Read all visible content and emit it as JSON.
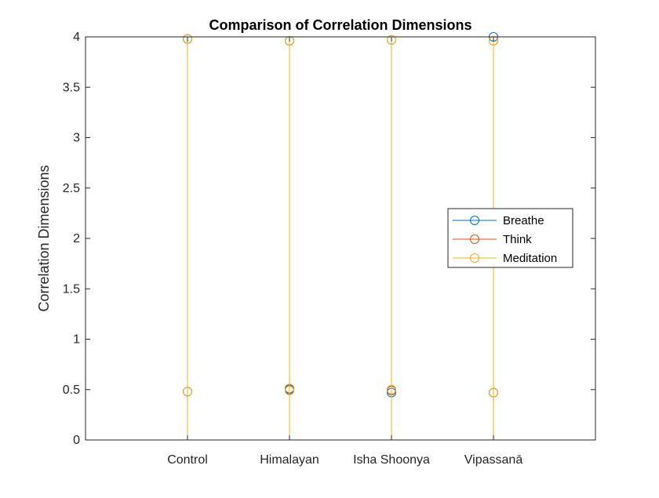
{
  "chart_data": {
    "type": "stem",
    "title": "Comparison of Correlation Dimensions",
    "xlabel": "",
    "ylabel": "Correlation Dimensions",
    "categories": [
      "Control",
      "Himalayan",
      "Isha Shoonya",
      "Vipassanā"
    ],
    "ylim": [
      0,
      4
    ],
    "yticks": [
      "0",
      "0.5",
      "1",
      "1.5",
      "2",
      "2.5",
      "3",
      "3.5",
      "4"
    ],
    "series": [
      {
        "name": "Breathe",
        "color": "#0072BD",
        "values": [
          [
            3.98,
            0.48
          ],
          [
            3.96,
            0.5
          ],
          [
            0.47,
            0.49
          ],
          [
            4.0,
            0.47
          ]
        ]
      },
      {
        "name": "Think",
        "color": "#D95319",
        "values": [
          [
            3.98,
            0.48
          ],
          [
            3.96,
            0.51
          ],
          [
            3.97,
            0.49
          ],
          [
            3.96,
            0.47
          ]
        ]
      },
      {
        "name": "Meditation",
        "color": "#EDB120",
        "values": [
          [
            3.98,
            0.48
          ],
          [
            3.96,
            0.49
          ],
          [
            3.97,
            0.5
          ],
          [
            3.96,
            0.47
          ]
        ]
      }
    ],
    "legend_position": "right",
    "grid": false
  }
}
